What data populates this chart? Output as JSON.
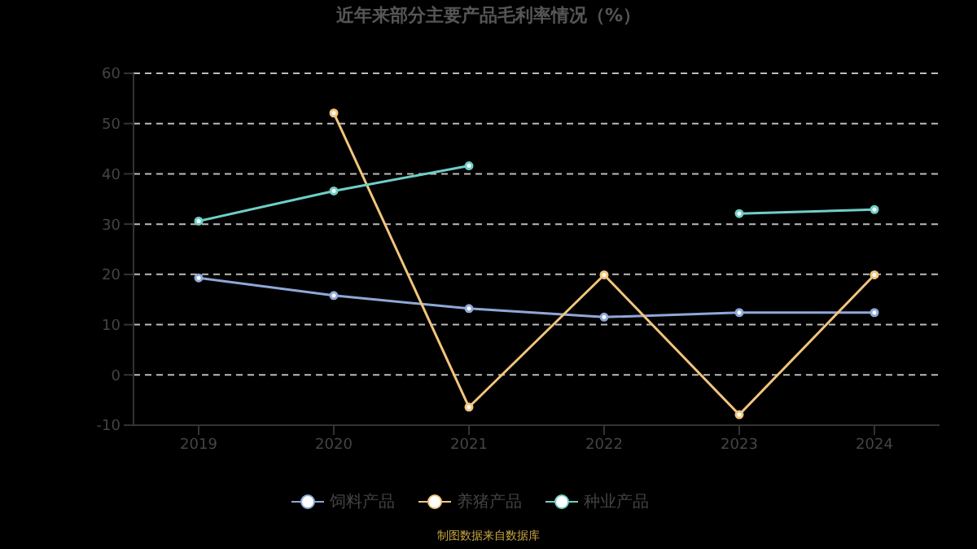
{
  "chart_data": {
    "type": "line",
    "title": "近年来部分主要产品毛利率情况（%）",
    "categories": [
      "2019",
      "2020",
      "2021",
      "2022",
      "2023",
      "2024"
    ],
    "series": [
      {
        "name": "饲料产品",
        "color": "#8fa8d8",
        "values": [
          19.3,
          15.8,
          13.2,
          11.5,
          12.4,
          12.4
        ]
      },
      {
        "name": "养猪产品",
        "color": "#f2c57c",
        "values": [
          null,
          52.1,
          -6.4,
          19.9,
          -7.9,
          19.9
        ]
      },
      {
        "name": "种业产品",
        "color": "#6fcfc6",
        "values": [
          30.6,
          36.6,
          41.6,
          null,
          32.1,
          32.9
        ]
      }
    ],
    "ylim": [
      -10,
      60
    ],
    "yticks": [
      -10,
      0,
      10,
      20,
      30,
      40,
      50,
      60
    ],
    "grid": "y",
    "legend": "bottom",
    "marker": "circle",
    "line_style": "solid",
    "annotations": [
      "制图数据来自数据库"
    ]
  }
}
